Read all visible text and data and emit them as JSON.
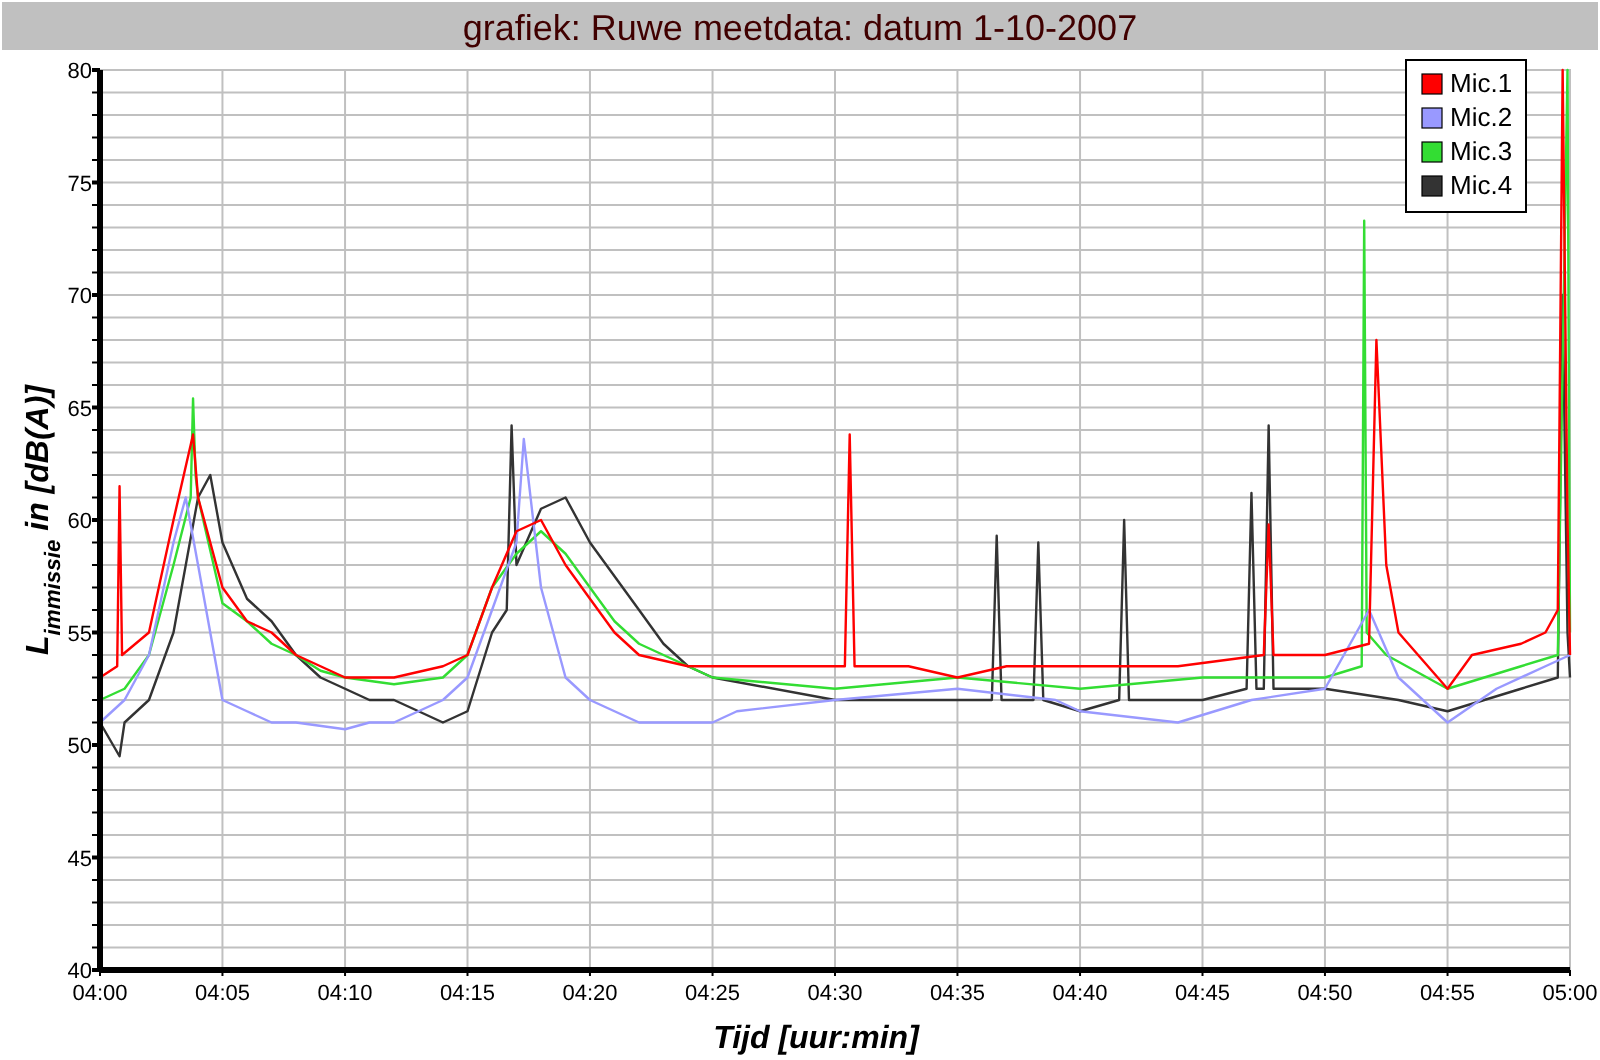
{
  "chart_data": {
    "type": "line",
    "title": "grafiek: Ruwe meetdata: datum 1-10-2007",
    "xlabel": "Tijd [uur:min]",
    "ylabel": "L$_{immissie}$ in [dB(A)]",
    "xlim": [
      4,
      5
    ],
    "xticks": [
      {
        "value": 4,
        "label": "04:00"
      },
      {
        "value": 4.0833,
        "label": "04:05"
      },
      {
        "value": 4.1667,
        "label": "04:10"
      },
      {
        "value": 4.25,
        "label": "04:15"
      },
      {
        "value": 4.3333,
        "label": "04:20"
      },
      {
        "value": 4.4167,
        "label": "04:25"
      },
      {
        "value": 4.5,
        "label": "04:30"
      },
      {
        "value": 4.5833,
        "label": "04:35"
      },
      {
        "value": 4.6667,
        "label": "04:40"
      },
      {
        "value": 4.75,
        "label": "04:45"
      },
      {
        "value": 4.8333,
        "label": "04:50"
      },
      {
        "value": 4.9167,
        "label": "04:55"
      },
      {
        "value": 5,
        "label": "05:00"
      }
    ],
    "ylim": [
      40,
      80
    ],
    "yticks": [
      40,
      {
        "value": 41,
        "label": null
      },
      {
        "value": 42,
        "label": null
      },
      {
        "value": 43,
        "label": null
      },
      {
        "value": 44,
        "label": null
      },
      45,
      {
        "value": 46,
        "label": null
      },
      {
        "value": 47,
        "label": null
      },
      {
        "value": 48,
        "label": null
      },
      {
        "value": 49,
        "label": null
      },
      50,
      {
        "value": 51,
        "label": null
      },
      {
        "value": 52,
        "label": null
      },
      {
        "value": 53,
        "label": null
      },
      {
        "value": 54,
        "label": null
      },
      55,
      {
        "value": 56,
        "label": null
      },
      {
        "value": 57,
        "label": null
      },
      {
        "value": 58,
        "label": null
      },
      {
        "value": 59,
        "label": null
      },
      60,
      {
        "value": 61,
        "label": null
      },
      {
        "value": 62,
        "label": null
      },
      {
        "value": 63,
        "label": null
      },
      {
        "value": 64,
        "label": null
      },
      65,
      {
        "value": 66,
        "label": null
      },
      {
        "value": 67,
        "label": null
      },
      {
        "value": 68,
        "label": null
      },
      {
        "value": 69,
        "label": null
      },
      70,
      {
        "value": 71,
        "label": null
      },
      {
        "value": 72,
        "label": null
      },
      {
        "value": 73,
        "label": null
      },
      {
        "value": 74,
        "label": null
      },
      75,
      {
        "value": 76,
        "label": null
      },
      {
        "value": 77,
        "label": null
      },
      {
        "value": 78,
        "label": null
      },
      {
        "value": 79,
        "label": null
      },
      80
    ],
    "grid": true,
    "legend": "top right",
    "marker": "none",
    "line_style": "solid",
    "series": [
      {
        "name": "Mic.1",
        "color": "#ff0000",
        "x": [
          4,
          4.0117,
          4.0133,
          4.015,
          4.0333,
          4.05,
          4.0633,
          4.0667,
          4.0833,
          4.1,
          4.1167,
          4.1333,
          4.15,
          4.1667,
          4.2,
          4.2333,
          4.25,
          4.2667,
          4.2833,
          4.3,
          4.3167,
          4.3333,
          4.35,
          4.3667,
          4.4,
          4.4333,
          4.4667,
          4.5,
          4.5067,
          4.51,
          4.5133,
          4.55,
          4.5833,
          4.6167,
          4.65,
          4.6833,
          4.7333,
          4.7917,
          4.795,
          4.7983,
          4.8333,
          4.8633,
          4.8683,
          4.875,
          4.8833,
          4.9167,
          4.9333,
          4.9667,
          4.9833,
          4.9917,
          4.995,
          4.9983,
          5
        ],
        "values": [
          53,
          53.5,
          61.5,
          54,
          55,
          60,
          63.8,
          61,
          57,
          55.5,
          55,
          54,
          53.5,
          53,
          53,
          53.5,
          54,
          57,
          59.5,
          60,
          58,
          56.5,
          55,
          54,
          53.5,
          53.5,
          53.5,
          53.5,
          53.5,
          63.8,
          53.5,
          53.5,
          53,
          53.5,
          53.5,
          53.5,
          53.5,
          54,
          59.8,
          54,
          54,
          54.5,
          68,
          58,
          55,
          52.5,
          54,
          54.5,
          55,
          56,
          80,
          60,
          54
        ]
      },
      {
        "name": "Mic.2",
        "color": "#9999ff",
        "x": [
          4,
          4.0167,
          4.0333,
          4.05,
          4.0583,
          4.0667,
          4.0833,
          4.1,
          4.1167,
          4.1333,
          4.1667,
          4.1833,
          4.2,
          4.2167,
          4.2333,
          4.25,
          4.2667,
          4.2833,
          4.2883,
          4.3,
          4.3167,
          4.3333,
          4.35,
          4.3667,
          4.4167,
          4.4333,
          4.5,
          4.5833,
          4.65,
          4.6667,
          4.7333,
          4.7833,
          4.8333,
          4.8633,
          4.8833,
          4.9167,
          4.95,
          4.9833,
          5
        ],
        "values": [
          51,
          52,
          54,
          59,
          61,
          58,
          52,
          51.5,
          51,
          51,
          50.7,
          51,
          51,
          51.5,
          52,
          53,
          56,
          59,
          63.6,
          57,
          53,
          52,
          51.5,
          51,
          51,
          51.5,
          52,
          52.5,
          52,
          51.5,
          51,
          52,
          52.5,
          56,
          53,
          51,
          52.5,
          53.5,
          54
        ]
      },
      {
        "name": "Mic.3",
        "color": "#33dd33",
        "x": [
          4,
          4.0167,
          4.0333,
          4.05,
          4.0617,
          4.0633,
          4.065,
          4.0667,
          4.0833,
          4.1,
          4.1167,
          4.1333,
          4.15,
          4.1667,
          4.2,
          4.2333,
          4.25,
          4.2667,
          4.2833,
          4.3,
          4.3167,
          4.3333,
          4.35,
          4.3667,
          4.3833,
          4.4,
          4.4167,
          4.5,
          4.5833,
          4.6667,
          4.75,
          4.7833,
          4.8333,
          4.8583,
          4.86,
          4.8617,
          4.875,
          4.9167,
          4.9667,
          4.9917,
          4.9983,
          5
        ],
        "values": [
          52,
          52.5,
          54,
          58,
          61,
          65.4,
          62,
          61,
          56.3,
          55.5,
          54.5,
          54,
          53.3,
          53,
          52.7,
          53,
          54,
          57,
          58.5,
          59.5,
          58.5,
          57,
          55.5,
          54.5,
          54,
          53.5,
          53,
          52.5,
          53,
          52.5,
          53,
          53,
          53,
          53.5,
          73.3,
          55,
          54,
          52.5,
          53.5,
          54,
          80,
          55
        ]
      },
      {
        "name": "Mic.4",
        "color": "#333333",
        "x": [
          4,
          4.0133,
          4.0167,
          4.0333,
          4.05,
          4.0667,
          4.075,
          4.0833,
          4.1,
          4.1167,
          4.1333,
          4.15,
          4.1667,
          4.1833,
          4.2,
          4.2167,
          4.2333,
          4.25,
          4.2667,
          4.2767,
          4.28,
          4.2833,
          4.3,
          4.3167,
          4.3333,
          4.35,
          4.3667,
          4.3833,
          4.4,
          4.4167,
          4.5,
          4.55,
          4.6067,
          4.61,
          4.6133,
          4.635,
          4.6383,
          4.6417,
          4.6667,
          4.6933,
          4.6967,
          4.7,
          4.75,
          4.78,
          4.7833,
          4.7867,
          4.7917,
          4.795,
          4.7983,
          4.8333,
          4.8833,
          4.9167,
          4.9667,
          4.9917,
          4.995,
          4.9983,
          5
        ],
        "values": [
          51,
          49.5,
          51,
          52,
          55,
          61,
          62,
          59,
          56.5,
          55.5,
          54,
          53,
          52.5,
          52,
          52,
          51.5,
          51,
          51.5,
          55,
          56,
          64.2,
          58,
          60.5,
          61,
          59,
          57.5,
          56,
          54.5,
          53.5,
          53,
          52,
          52,
          52,
          59.3,
          52,
          52,
          59,
          52,
          51.5,
          52,
          60,
          52,
          52,
          52.5,
          61.2,
          52.5,
          52.5,
          64.2,
          52.5,
          52.5,
          52,
          51.5,
          52.5,
          53,
          70,
          55,
          53
        ]
      }
    ]
  }
}
